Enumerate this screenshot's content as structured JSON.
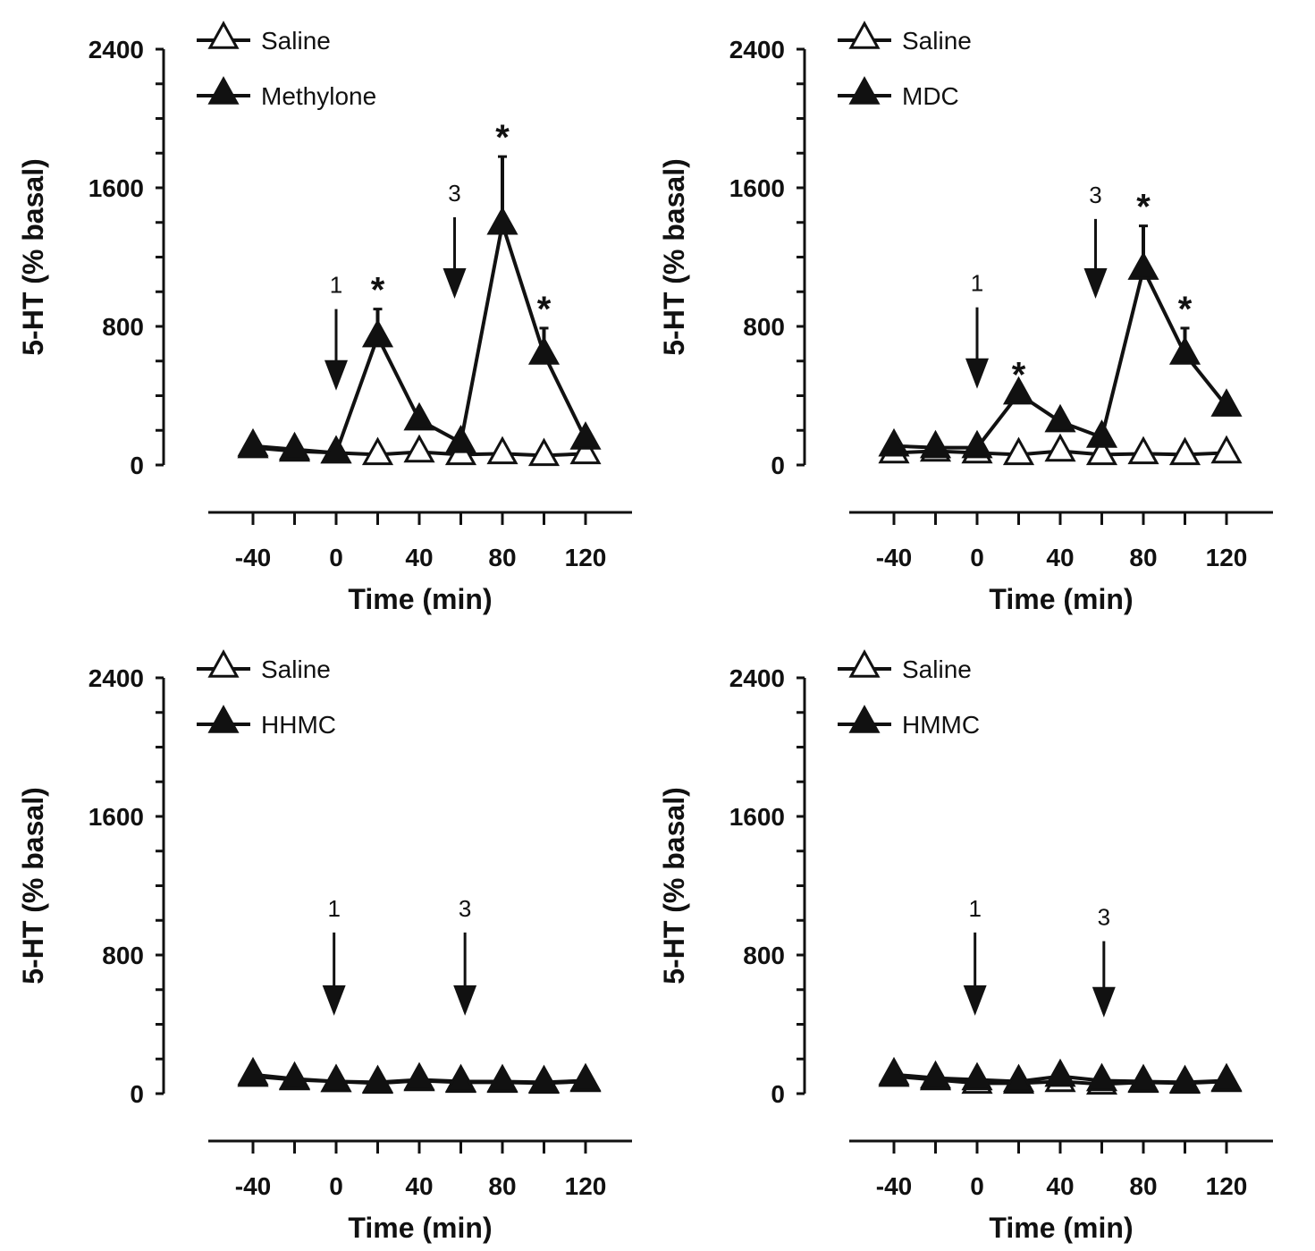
{
  "colors": {
    "ink": "#111111",
    "background": "#ffffff",
    "open_marker_fill": "#ffffff"
  },
  "chart_data": [
    {
      "type": "line",
      "xlabel": "Time (min)",
      "ylabel": "5-HT (% basal)",
      "ylim": [
        0,
        2400
      ],
      "yticks": [
        "0",
        "800",
        "1600",
        "2400"
      ],
      "xlim": [
        -50,
        130
      ],
      "xticks": [
        "-40",
        "0",
        "40",
        "80",
        "120"
      ],
      "x": [
        -40,
        -20,
        0,
        20,
        40,
        60,
        80,
        100,
        120
      ],
      "legend_position": "top-left",
      "series": [
        {
          "name": "Saline",
          "marker": "open-triangle",
          "values": [
            100,
            80,
            70,
            60,
            75,
            60,
            65,
            55,
            65
          ],
          "error": [
            0,
            0,
            0,
            0,
            0,
            0,
            0,
            0,
            0
          ]
        },
        {
          "name": "Methylone",
          "marker": "filled-triangle",
          "values": [
            110,
            90,
            70,
            740,
            260,
            130,
            1390,
            640,
            150
          ],
          "error": [
            0,
            0,
            0,
            160,
            0,
            0,
            390,
            150,
            0
          ]
        }
      ],
      "arrows": [
        {
          "x": 0,
          "label": "1",
          "top": 900,
          "tip": 430
        },
        {
          "x": 57,
          "label": "3",
          "top": 1430,
          "tip": 960
        }
      ],
      "stars": [
        20,
        80,
        100
      ]
    },
    {
      "type": "line",
      "xlabel": "Time (min)",
      "ylabel": "5-HT (% basal)",
      "ylim": [
        0,
        2400
      ],
      "yticks": [
        "0",
        "800",
        "1600",
        "2400"
      ],
      "xlim": [
        -50,
        130
      ],
      "xticks": [
        "-40",
        "0",
        "40",
        "80",
        "120"
      ],
      "x": [
        -40,
        -20,
        0,
        20,
        40,
        60,
        80,
        100,
        120
      ],
      "legend_position": "top-left",
      "series": [
        {
          "name": "Saline",
          "marker": "open-triangle",
          "values": [
            70,
            80,
            70,
            60,
            80,
            60,
            65,
            60,
            70
          ],
          "error": [
            0,
            0,
            0,
            0,
            0,
            0,
            0,
            0,
            0
          ]
        },
        {
          "name": "MDC",
          "marker": "filled-triangle",
          "values": [
            110,
            100,
            100,
            410,
            250,
            160,
            1130,
            640,
            340
          ],
          "error": [
            0,
            0,
            0,
            0,
            0,
            0,
            250,
            150,
            0
          ]
        }
      ],
      "arrows": [
        {
          "x": 0,
          "label": "1",
          "top": 910,
          "tip": 440
        },
        {
          "x": 57,
          "label": "3",
          "top": 1420,
          "tip": 960
        }
      ],
      "stars": [
        20,
        80,
        100
      ]
    },
    {
      "type": "line",
      "xlabel": "Time (min)",
      "ylabel": "5-HT (% basal)",
      "ylim": [
        0,
        2400
      ],
      "yticks": [
        "0",
        "800",
        "1600",
        "2400"
      ],
      "xlim": [
        -50,
        130
      ],
      "xticks": [
        "-40",
        "0",
        "40",
        "80",
        "120"
      ],
      "x": [
        -40,
        -20,
        0,
        20,
        40,
        60,
        80,
        100,
        120
      ],
      "legend_position": "top-left",
      "series": [
        {
          "name": "Saline",
          "marker": "open-triangle",
          "values": [
            100,
            80,
            70,
            60,
            75,
            65,
            65,
            60,
            70
          ],
          "error": [
            0,
            0,
            0,
            0,
            0,
            0,
            0,
            0,
            0
          ]
        },
        {
          "name": "HHMC",
          "marker": "filled-triangle",
          "values": [
            110,
            85,
            70,
            65,
            80,
            70,
            70,
            65,
            75
          ],
          "error": [
            0,
            0,
            0,
            0,
            0,
            0,
            0,
            0,
            0
          ]
        }
      ],
      "arrows": [
        {
          "x": -1,
          "label": "1",
          "top": 930,
          "tip": 450
        },
        {
          "x": 62,
          "label": "3",
          "top": 930,
          "tip": 450
        }
      ],
      "stars": []
    },
    {
      "type": "line",
      "xlabel": "Time (min)",
      "ylabel": "5-HT (% basal)",
      "ylim": [
        0,
        2400
      ],
      "yticks": [
        "0",
        "800",
        "1600",
        "2400"
      ],
      "xlim": [
        -50,
        130
      ],
      "xticks": [
        "-40",
        "0",
        "40",
        "80",
        "120"
      ],
      "x": [
        -40,
        -20,
        0,
        20,
        40,
        60,
        80,
        100,
        120
      ],
      "legend_position": "top-left",
      "series": [
        {
          "name": "Saline",
          "marker": "open-triangle",
          "values": [
            100,
            80,
            60,
            60,
            70,
            55,
            65,
            60,
            70
          ],
          "error": [
            0,
            0,
            0,
            0,
            0,
            0,
            0,
            0,
            0
          ]
        },
        {
          "name": "HMMC",
          "marker": "filled-triangle",
          "values": [
            110,
            90,
            80,
            70,
            100,
            75,
            70,
            65,
            75
          ],
          "error": [
            0,
            0,
            0,
            0,
            0,
            0,
            0,
            0,
            0
          ]
        }
      ],
      "arrows": [
        {
          "x": -1,
          "label": "1",
          "top": 930,
          "tip": 450
        },
        {
          "x": 61,
          "label": "3",
          "top": 880,
          "tip": 440
        }
      ],
      "stars": []
    }
  ]
}
